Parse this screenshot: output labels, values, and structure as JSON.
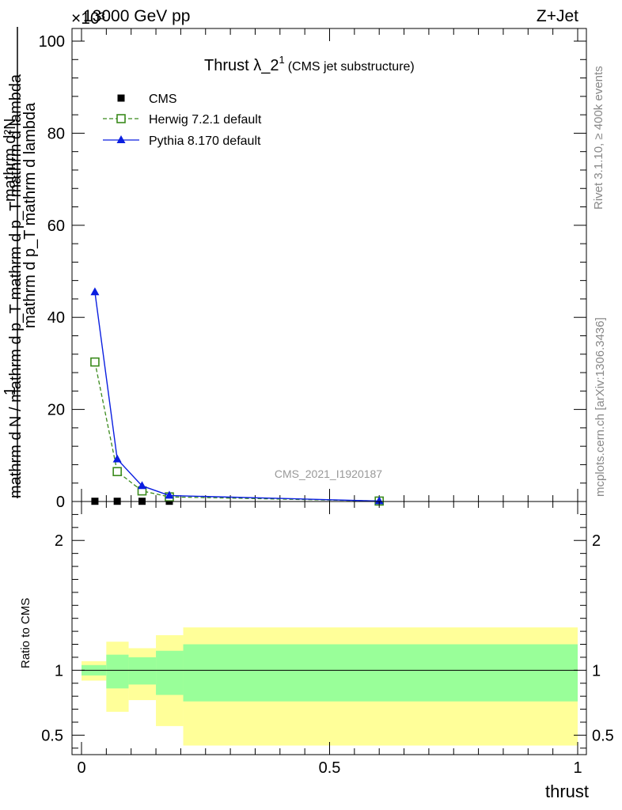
{
  "header": {
    "energy_label": "13000 GeV pp",
    "process_label": "Z+Jet",
    "exponent_label": "×10³"
  },
  "side_texts": {
    "rivet": "Rivet 3.1.10, ≥ 400k events",
    "source": "mcplots.cern.ch [arXiv:1306.3436]"
  },
  "watermark": "CMS_2021_I1920187",
  "chart_data": [
    {
      "type": "line",
      "title_main": "Thrust λ_2",
      "title_sup": "1",
      "title_sub": "(CMS jet substructure)",
      "ylabel": "1 / mathrm d N / mathrm d p_T mathrm d p_T mathrm d lambda mathrm d^2 N",
      "ylabel_top": "mathrm d²N",
      "ylabel_mid": "mathrm d p_T mathrm d lambda",
      "ylabel_bottom": "1",
      "ylabel_denominator": "mathrm d N / mathrm d p_T mathrm d p_T mathrm d lambda",
      "ylim": [
        0,
        100
      ],
      "yscale_exponent": 3,
      "yticks": [
        0,
        20,
        40,
        60,
        80,
        100
      ],
      "ytick_labels": [
        "0",
        "20",
        "40",
        "60",
        "80",
        "100"
      ],
      "xlim": [
        0,
        1
      ],
      "legend_position": "top-left",
      "series": [
        {
          "name": "CMS",
          "marker": "square-filled",
          "color": "#000000",
          "x": [
            0.027,
            0.072,
            0.122,
            0.177,
            0.6
          ],
          "y": [
            0.05,
            0.05,
            0.05,
            0.05,
            0.05
          ]
        },
        {
          "name": "Herwig 7.2.1 default",
          "marker": "square-open",
          "line": "dashed",
          "color": "#3a8a1c",
          "x": [
            0.027,
            0.072,
            0.122,
            0.177,
            0.6
          ],
          "y": [
            30.3,
            6.5,
            2.3,
            1.0,
            0.1
          ]
        },
        {
          "name": "Pythia 8.170 default",
          "marker": "triangle-filled",
          "line": "solid",
          "color": "#0a1ee0",
          "x": [
            0.027,
            0.072,
            0.122,
            0.177,
            0.6
          ],
          "y": [
            45.5,
            9.2,
            3.4,
            1.3,
            0.1
          ]
        }
      ]
    },
    {
      "type": "area",
      "ylabel": "Ratio to CMS",
      "xlabel": "thrust",
      "xlim": [
        0,
        1
      ],
      "ylim": [
        0.35,
        2.3
      ],
      "yticks": [
        0.5,
        1,
        2
      ],
      "ytick_labels": [
        "0.5",
        "1",
        "2"
      ],
      "xticks": [
        0,
        0.5,
        1
      ],
      "xtick_labels": [
        "0",
        "0.5",
        "1"
      ],
      "reference_line": 1,
      "bins": [
        {
          "x0": 0.0,
          "x1": 0.05,
          "inner": [
            0.96,
            1.04
          ],
          "outer": [
            0.92,
            1.07
          ]
        },
        {
          "x0": 0.05,
          "x1": 0.095,
          "inner": [
            0.86,
            1.12
          ],
          "outer": [
            0.68,
            1.22
          ]
        },
        {
          "x0": 0.095,
          "x1": 0.15,
          "inner": [
            0.89,
            1.1
          ],
          "outer": [
            0.77,
            1.17
          ]
        },
        {
          "x0": 0.15,
          "x1": 0.205,
          "inner": [
            0.81,
            1.15
          ],
          "outer": [
            0.57,
            1.27
          ]
        },
        {
          "x0": 0.205,
          "x1": 1.0,
          "inner": [
            0.76,
            1.2
          ],
          "outer": [
            0.42,
            1.33
          ]
        }
      ],
      "colors": {
        "inner": "#99ff99",
        "outer": "#ffff99"
      }
    }
  ]
}
